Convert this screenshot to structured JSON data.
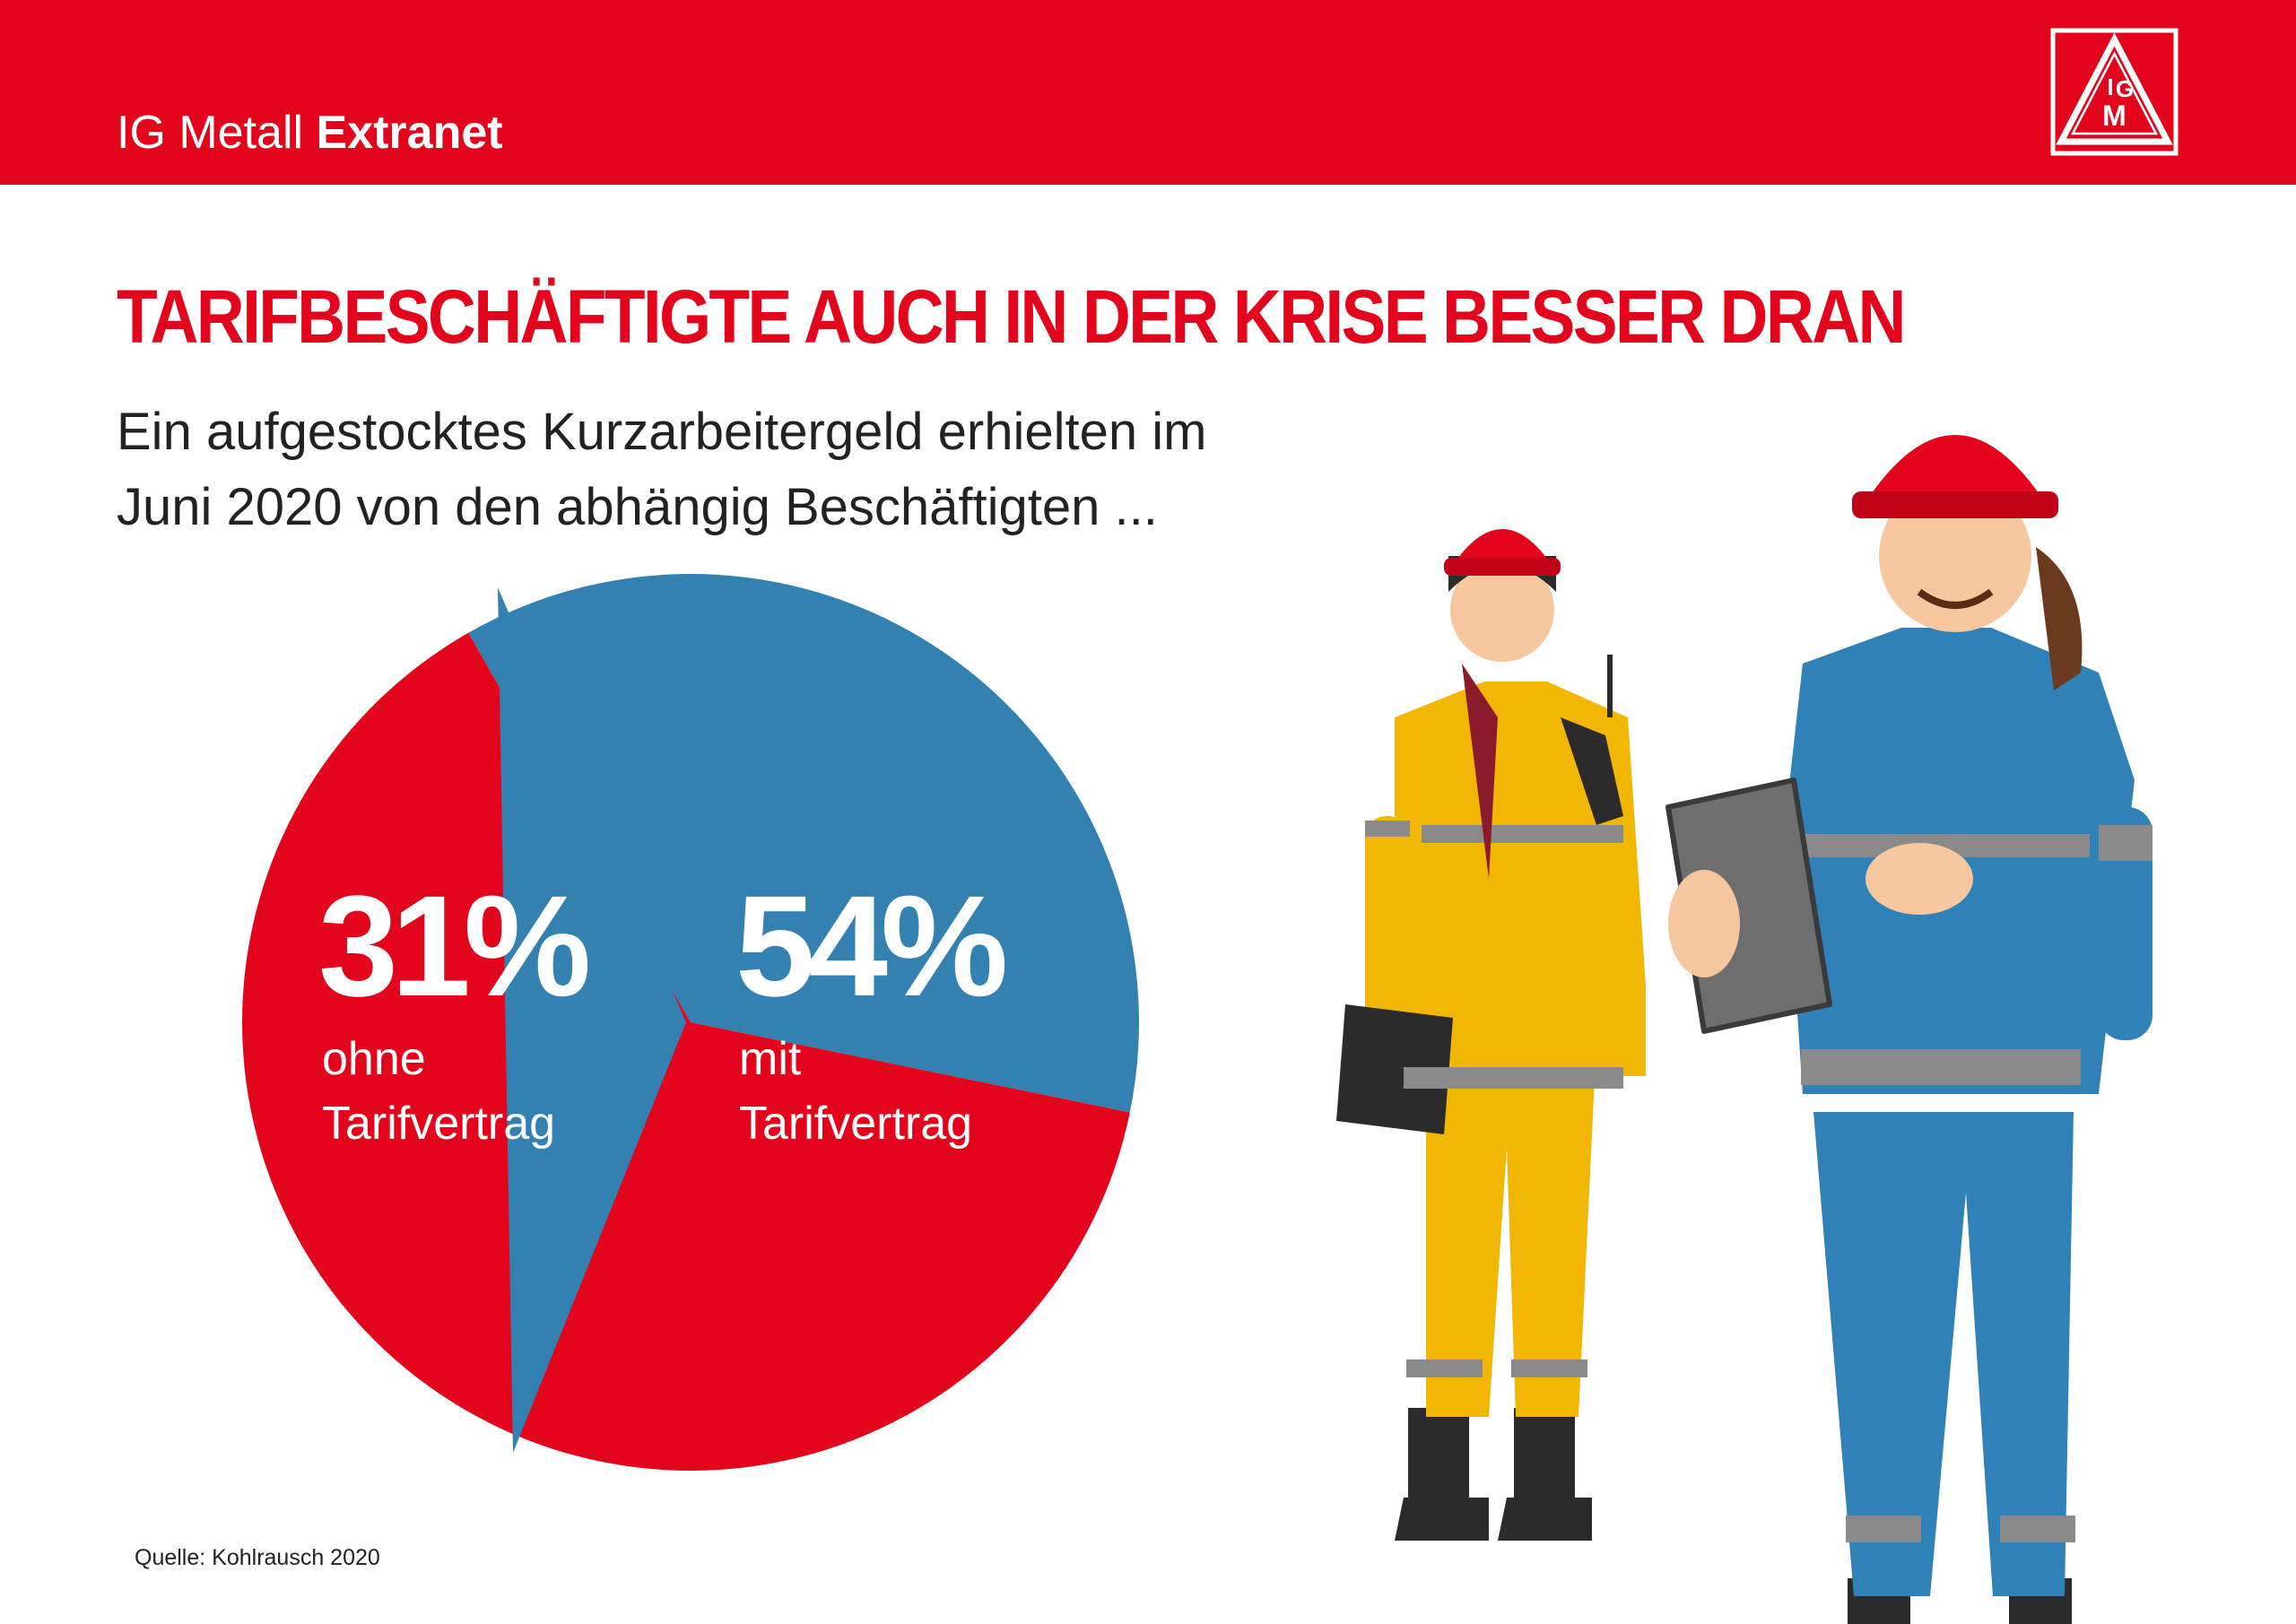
{
  "header": {
    "brand_light": "IG Metall",
    "brand_bold": "Extranet",
    "logo_icon": "ig-metall-logo-icon",
    "logo_text": "IGM",
    "background_color": "#e3051b"
  },
  "headline": "TARIFBESCHÄFTIGTE AUCH IN DER KRISE BESSER DRAN",
  "subtitle_line1": "Ein aufgestocktes Kurzarbeitergeld erhielten im",
  "subtitle_line2": "Juni 2020 von den abhängig Beschäftigten ...",
  "chart_data": {
    "type": "pie",
    "values": [
      31,
      54
    ],
    "units": "%",
    "slices": [
      {
        "value": 31,
        "value_label": "31%",
        "label_line1": "ohne",
        "label_line2": "Tarifvertrag",
        "color": "#3381b0"
      },
      {
        "value": 54,
        "value_label": "54%",
        "label_line1": "mit",
        "label_line2": "Tarifvertrag",
        "color": "#e3051b"
      }
    ]
  },
  "source": "Quelle: Kohlrausch 2020",
  "illustration": {
    "icon": "two-industrial-workers-illustration",
    "colors": {
      "helmet": "#e3051b",
      "yellow_suit": "#f2b705",
      "blue_suit": "#2f81b7",
      "reflective": "#8a8a8a",
      "skin": "#f6c79f"
    }
  }
}
